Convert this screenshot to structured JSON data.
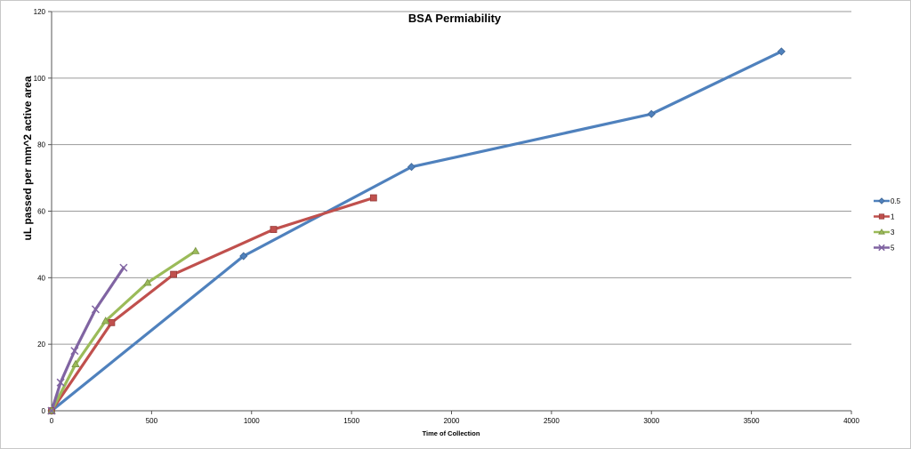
{
  "chart_data": {
    "type": "line",
    "title": "BSA Permiability",
    "xlabel": "Time of Collection",
    "ylabel": "uL passed per mm^2 active area",
    "xlim": [
      0,
      4000
    ],
    "ylim": [
      0,
      120
    ],
    "x_ticks": [
      0,
      500,
      1000,
      1500,
      2000,
      2500,
      3000,
      3500,
      4000
    ],
    "y_ticks": [
      0,
      20,
      40,
      60,
      80,
      100,
      120
    ],
    "grid": true,
    "legend_position": "right",
    "series": [
      {
        "name": "0.5",
        "color": "#4f81bd",
        "marker": "diamond",
        "x": [
          0,
          960,
          1800,
          3000,
          3650
        ],
        "y": [
          0,
          46.5,
          73.3,
          89.2,
          108
        ]
      },
      {
        "name": "1",
        "color": "#c0504d",
        "marker": "square",
        "x": [
          0,
          300,
          610,
          1110,
          1610
        ],
        "y": [
          0,
          26.5,
          41,
          54.5,
          64
        ]
      },
      {
        "name": "3",
        "color": "#9bbb59",
        "marker": "triangle",
        "x": [
          0,
          120,
          270,
          480,
          720
        ],
        "y": [
          0,
          14,
          27,
          38.5,
          48
        ]
      },
      {
        "name": "5",
        "color": "#8064a2",
        "marker": "x",
        "x": [
          0,
          45,
          115,
          220,
          360
        ],
        "y": [
          0,
          8.5,
          18,
          30.5,
          43
        ]
      }
    ]
  }
}
